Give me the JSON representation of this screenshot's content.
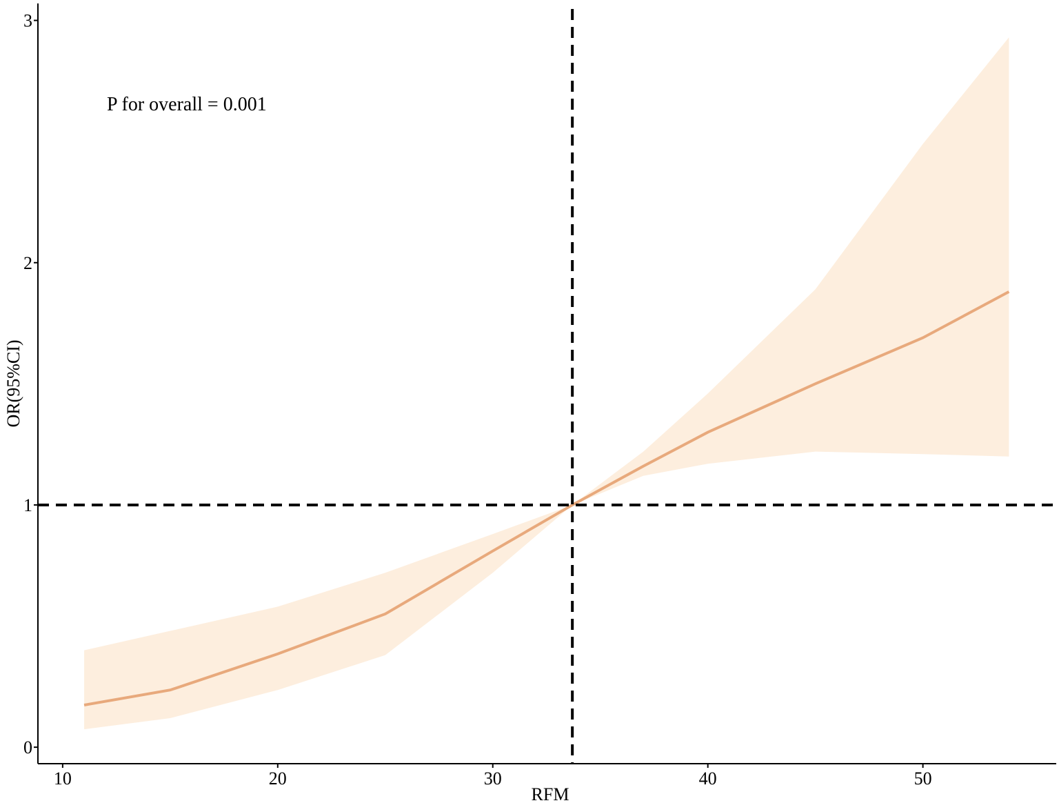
{
  "chart_data": {
    "type": "line",
    "x_label": "RFM",
    "y_label": "OR(95%CI)",
    "annotation": "P for overall = 0.001",
    "x": [
      11,
      15,
      20,
      25,
      30,
      33.7,
      37,
      40,
      45,
      50,
      54
    ],
    "line": {
      "color": "#e8a97c",
      "values": [
        0.174,
        0.236,
        0.385,
        0.55,
        0.81,
        1,
        1.16,
        1.3,
        1.5,
        1.69,
        1.88
      ]
    },
    "band": {
      "color": "#fdeede",
      "lower": [
        0.074,
        0.12,
        0.236,
        0.38,
        0.72,
        1,
        1.12,
        1.17,
        1.22,
        1.21,
        1.2
      ],
      "upper": [
        0.4,
        0.48,
        0.58,
        0.72,
        0.88,
        1,
        1.22,
        1.46,
        1.89,
        2.49,
        2.93
      ]
    },
    "vline": 33.7,
    "hline": 1,
    "xlim": [
      8.85,
      56.2
    ],
    "ylim": [
      -0.068,
      3.07
    ],
    "xticks": [
      10,
      20,
      30,
      40,
      50
    ],
    "yticks": [
      0,
      1,
      2,
      3
    ]
  }
}
